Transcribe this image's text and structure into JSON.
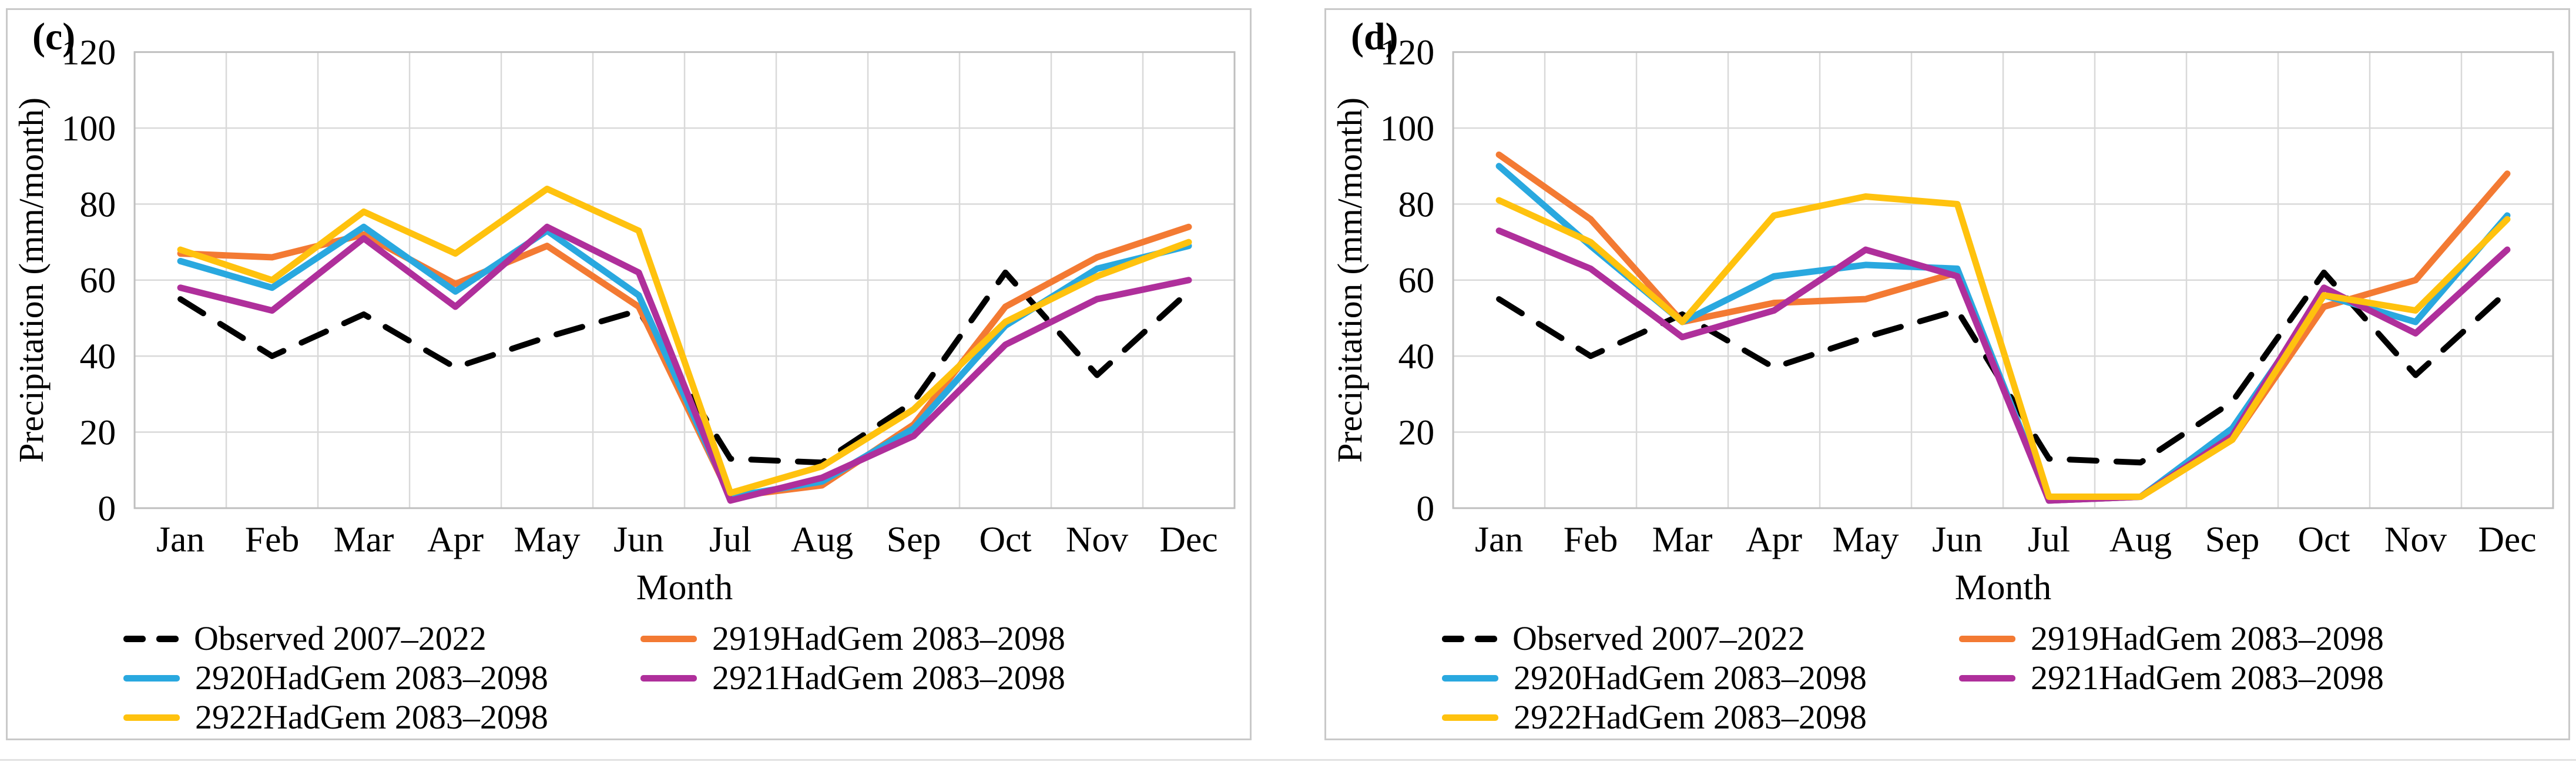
{
  "chart_data": [
    {
      "type": "line",
      "panel_label": "(c)",
      "xlabel": "Month",
      "ylabel": "Precipitation (mm/month)",
      "ylim": [
        0,
        120
      ],
      "yticks": [
        0,
        20,
        40,
        60,
        80,
        100,
        120
      ],
      "grid": true,
      "legend_position": "bottom",
      "categories": [
        "Jan",
        "Feb",
        "Mar",
        "Apr",
        "May",
        "Jun",
        "Jul",
        "Aug",
        "Sep",
        "Oct",
        "Nov",
        "Dec"
      ],
      "series": [
        {
          "name": "Observed 2007–2022",
          "color": "#000000",
          "dashed": true,
          "values": [
            55,
            40,
            51,
            37,
            45,
            52,
            13,
            12,
            28,
            62,
            35,
            57
          ]
        },
        {
          "name": "2919HadGem 2083–2098",
          "color": "#F37A33",
          "dashed": false,
          "values": [
            67,
            66,
            72,
            59,
            69,
            53,
            3,
            6,
            22,
            53,
            66,
            74
          ]
        },
        {
          "name": "2920HadGem 2083–2098",
          "color": "#29A8DF",
          "dashed": false,
          "values": [
            65,
            58,
            74,
            57,
            73,
            56,
            3,
            7,
            21,
            48,
            63,
            69
          ]
        },
        {
          "name": "2921HadGem 2083–2098",
          "color": "#AF2F9B",
          "dashed": false,
          "values": [
            58,
            52,
            71,
            53,
            74,
            62,
            2,
            8,
            19,
            43,
            55,
            60
          ]
        },
        {
          "name": "2922HadGem 2083–2098",
          "color": "#FFC20E",
          "dashed": false,
          "values": [
            68,
            60,
            78,
            67,
            84,
            73,
            4,
            11,
            26,
            49,
            61,
            70
          ]
        }
      ]
    },
    {
      "type": "line",
      "panel_label": "(d)",
      "xlabel": "Month",
      "ylabel": "Precipitation (mm/month)",
      "ylim": [
        0,
        120
      ],
      "yticks": [
        0,
        20,
        40,
        60,
        80,
        100,
        120
      ],
      "grid": true,
      "legend_position": "bottom",
      "categories": [
        "Jan",
        "Feb",
        "Mar",
        "Apr",
        "May",
        "Jun",
        "Jul",
        "Aug",
        "Sep",
        "Oct",
        "Nov",
        "Dec"
      ],
      "series": [
        {
          "name": "Observed 2007–2022",
          "color": "#000000",
          "dashed": true,
          "values": [
            55,
            40,
            51,
            37,
            45,
            52,
            13,
            12,
            28,
            62,
            35,
            57
          ]
        },
        {
          "name": "2919HadGem 2083–2098",
          "color": "#F37A33",
          "dashed": false,
          "values": [
            93,
            76,
            49,
            54,
            55,
            62,
            2,
            3,
            18,
            53,
            60,
            88
          ]
        },
        {
          "name": "2920HadGem 2083–2098",
          "color": "#29A8DF",
          "dashed": false,
          "values": [
            90,
            69,
            49,
            61,
            64,
            63,
            2,
            3,
            21,
            56,
            49,
            77
          ]
        },
        {
          "name": "2921HadGem 2083–2098",
          "color": "#AF2F9B",
          "dashed": false,
          "values": [
            73,
            63,
            45,
            52,
            68,
            61,
            2,
            3,
            19,
            58,
            46,
            68
          ]
        },
        {
          "name": "2922HadGem 2083–2098",
          "color": "#FFC20E",
          "dashed": false,
          "values": [
            81,
            70,
            49,
            77,
            82,
            80,
            3,
            3,
            18,
            56,
            52,
            76
          ]
        }
      ]
    }
  ]
}
